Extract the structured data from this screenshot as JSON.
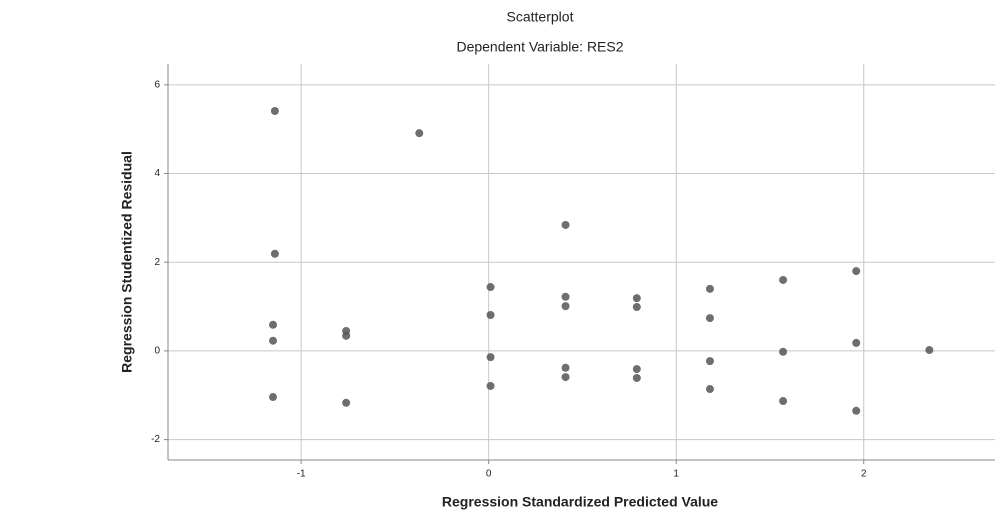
{
  "chart_data": {
    "type": "scatter",
    "title": "Scatterplot",
    "subtitle": "Dependent Variable: RES2",
    "x_label": "Regression Standardized Predicted Value",
    "y_label": "Regression Studentized Residual",
    "xlim": [
      -1.71,
      2.7
    ],
    "ylim": [
      -2.46,
      6.47
    ],
    "xticks": [
      -1,
      0,
      1,
      2
    ],
    "yticks": [
      -2,
      0,
      2,
      4,
      6
    ],
    "grid": true,
    "color": "#555555",
    "x": [
      -1.14,
      -0.37,
      0.41,
      -1.14,
      0.01,
      0.41,
      0.41,
      0.79,
      0.79,
      1.18,
      1.57,
      1.96,
      -1.15,
      -0.76,
      -0.76,
      0.01,
      1.18,
      -1.15,
      1.96,
      2.35,
      1.57,
      0.01,
      1.18,
      0.41,
      0.79,
      0.41,
      0.79,
      0.01,
      1.18,
      -1.15,
      -0.76,
      1.57,
      1.96
    ],
    "values": [
      5.41,
      4.91,
      2.84,
      2.19,
      1.44,
      1.22,
      1.01,
      1.19,
      0.99,
      1.4,
      1.6,
      1.8,
      0.59,
      0.45,
      0.34,
      0.81,
      0.74,
      0.23,
      0.18,
      0.02,
      -0.02,
      -0.14,
      -0.23,
      -0.38,
      -0.41,
      -0.59,
      -0.61,
      -0.79,
      -0.86,
      -1.04,
      -1.17,
      -1.13,
      -1.35
    ]
  }
}
